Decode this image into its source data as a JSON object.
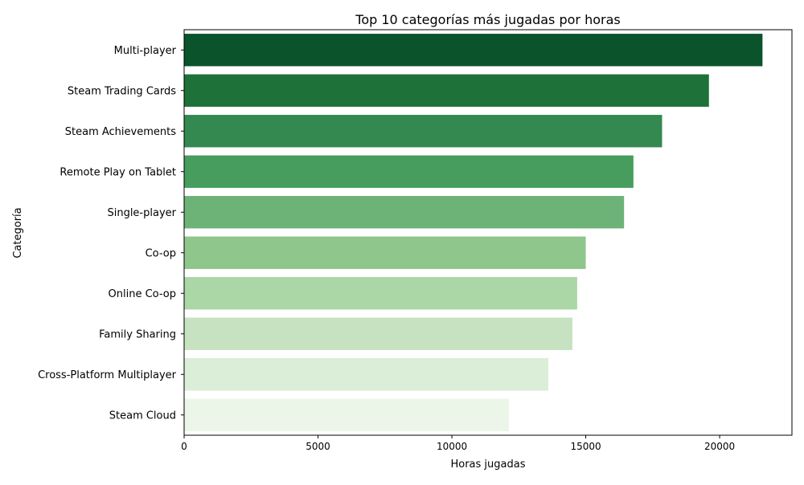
{
  "chart_data": {
    "type": "bar",
    "orientation": "horizontal",
    "title": "Top 10 categorías más jugadas por horas",
    "xlabel": "Horas jugadas",
    "ylabel": "Categoría",
    "xlim": [
      0,
      22700
    ],
    "xticks": [
      0,
      5000,
      10000,
      15000,
      20000
    ],
    "xtick_labels": [
      "0",
      "5000",
      "10000",
      "15000",
      "20000"
    ],
    "grid": false,
    "legend": "none",
    "categories": [
      "Multi-player",
      "Steam Trading Cards",
      "Steam Achievements",
      "Remote Play on Tablet",
      "Single-player",
      "Co-op",
      "Online Co-op",
      "Family Sharing",
      "Cross-Platform Multiplayer",
      "Steam Cloud"
    ],
    "values": [
      21600,
      19600,
      17850,
      16780,
      16430,
      15000,
      14680,
      14500,
      13600,
      12130
    ],
    "colors": [
      "#0b532b",
      "#1e7139",
      "#33894f",
      "#469d5d",
      "#6db277",
      "#8ec68b",
      "#abd6a6",
      "#c7e2c1",
      "#dbeed7",
      "#ebf6e8"
    ]
  }
}
